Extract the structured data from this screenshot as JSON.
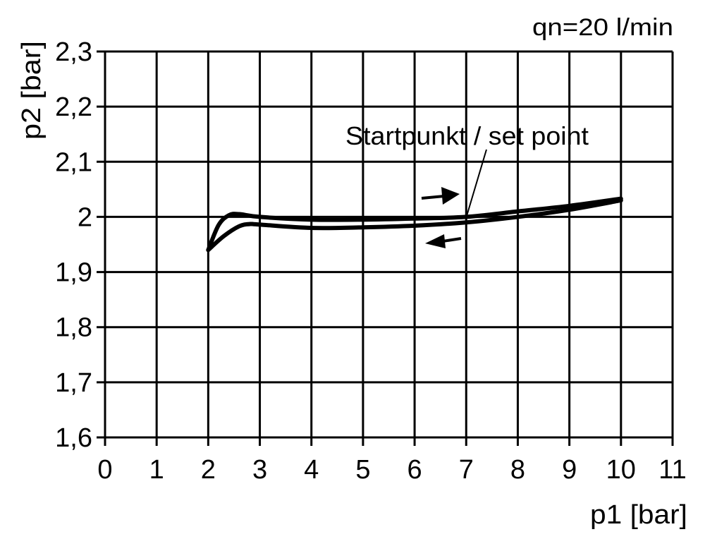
{
  "chart_data": {
    "type": "line",
    "title": "",
    "annotation_top_right": "qn=20 l/min",
    "xlabel": "p1 [bar]",
    "ylabel": "p2 [bar]",
    "xlim": [
      0,
      11
    ],
    "ylim": [
      1.6,
      2.3
    ],
    "x_ticks": [
      0,
      1,
      2,
      3,
      4,
      5,
      6,
      7,
      8,
      9,
      10,
      11
    ],
    "x_tick_labels": [
      "0",
      "1",
      "2",
      "3",
      "4",
      "5",
      "6",
      "7",
      "8",
      "9",
      "10",
      "11"
    ],
    "y_ticks": [
      1.6,
      1.7,
      1.8,
      1.9,
      2.0,
      2.1,
      2.2,
      2.3
    ],
    "y_tick_labels": [
      "1,6",
      "1,7",
      "1,8",
      "1,9",
      "2",
      "2,1",
      "2,2",
      "2,3"
    ],
    "grid": true,
    "set_point_label": "Startpunkt / set point",
    "set_point": [
      7,
      2.0
    ],
    "series": [
      {
        "direction": "increasing",
        "x": [
          2,
          2.2,
          2.4,
          2.6,
          3,
          4,
          5,
          6,
          7,
          8,
          9,
          10
        ],
        "y": [
          1.94,
          1.985,
          2.003,
          2.005,
          2.0,
          1.995,
          1.995,
          1.997,
          2.0,
          2.01,
          2.02,
          2.033
        ]
      },
      {
        "direction": "decreasing",
        "x": [
          2,
          2.3,
          2.6,
          2.8,
          3,
          4,
          5,
          6,
          7,
          8,
          9,
          10
        ],
        "y": [
          1.94,
          1.965,
          1.983,
          1.987,
          1.986,
          1.98,
          1.981,
          1.984,
          1.99,
          2.0,
          2.013,
          2.03
        ]
      }
    ],
    "colors": {
      "line": "#000000",
      "background": "#ffffff"
    }
  }
}
